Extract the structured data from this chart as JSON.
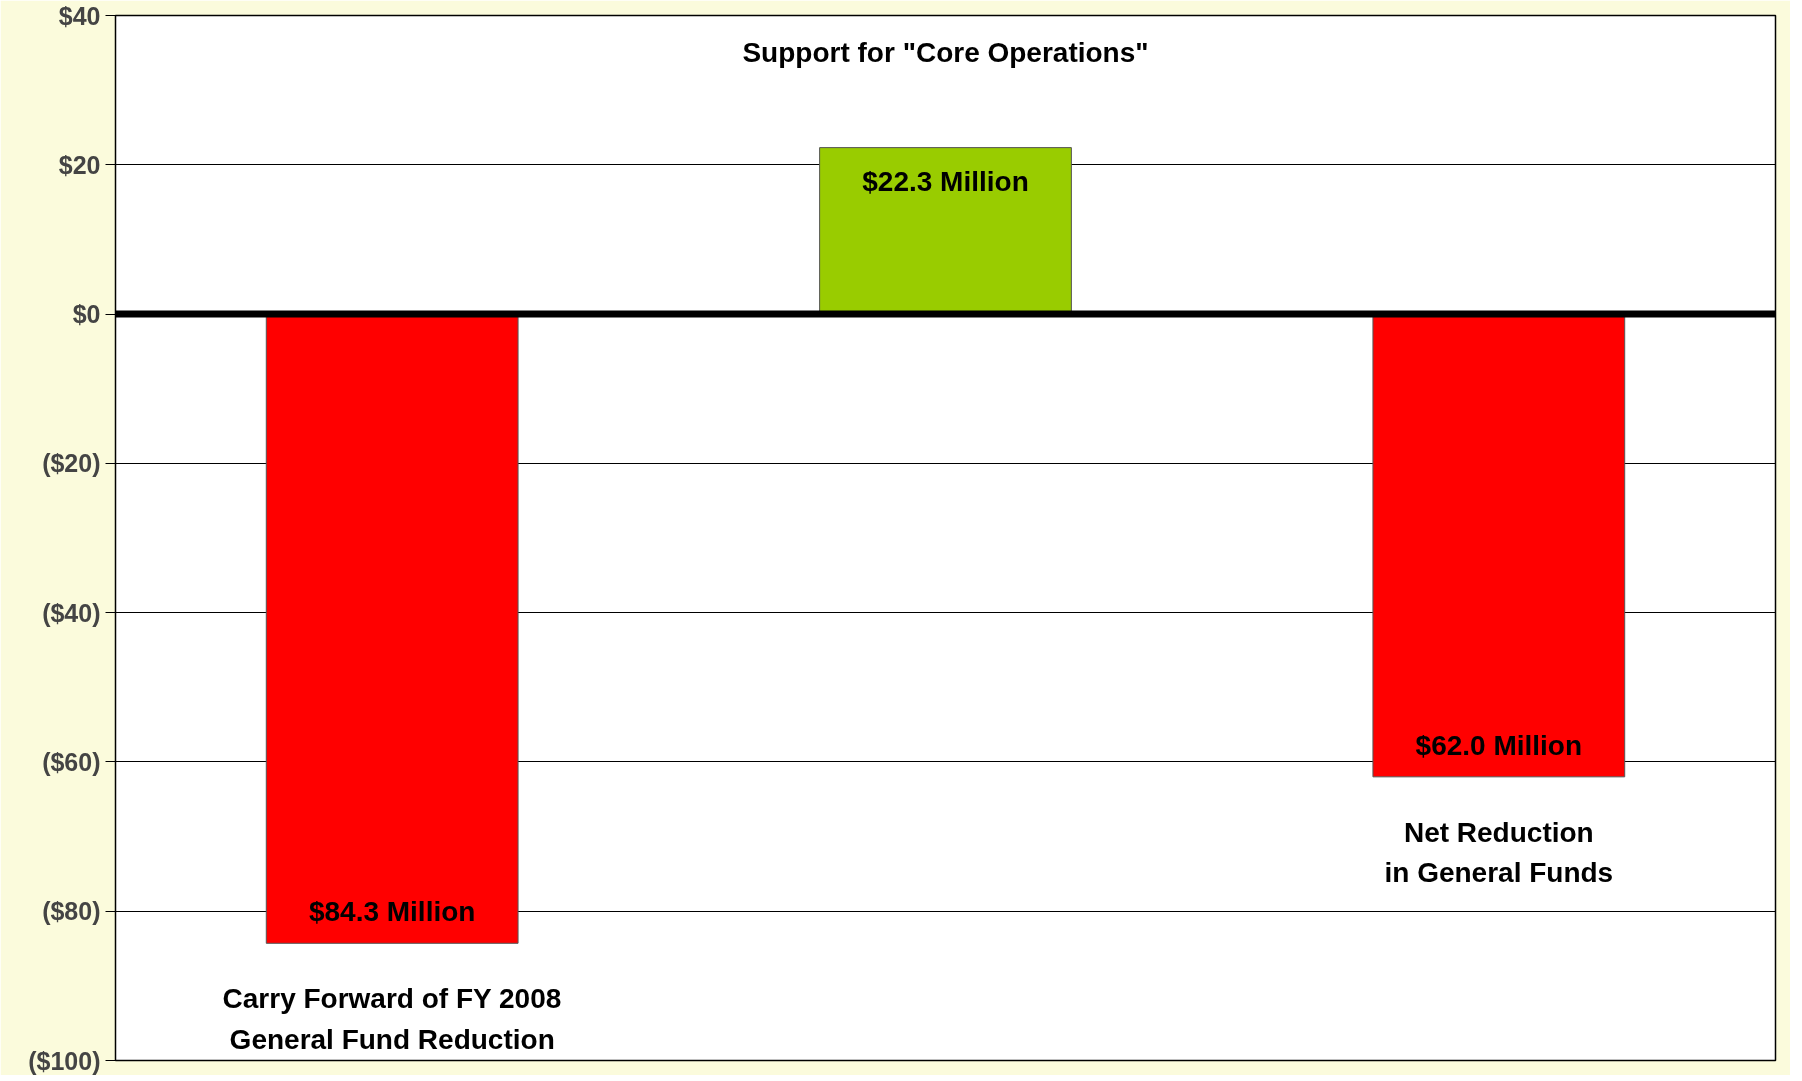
{
  "chart_data": {
    "type": "bar",
    "categories": [
      "Carry Forward of FY 2008\nGeneral Fund Reduction",
      "Support for \"Core Operations\"",
      "Net Reduction\nin General Funds"
    ],
    "values": [
      -84.3,
      22.3,
      -62.0
    ],
    "colors": [
      "#ff0000",
      "#99cc00",
      "#ff0000"
    ],
    "annotations": [
      "$84.3 Million",
      "$22.3 Million",
      "$62.0 Million"
    ],
    "ylim": [
      -100,
      40
    ],
    "yticks": [
      {
        "value": 40,
        "label": "$40"
      },
      {
        "value": 20,
        "label": "$20"
      },
      {
        "value": 0,
        "label": "$0"
      },
      {
        "value": -20,
        "label": "($20)"
      },
      {
        "value": -40,
        "label": "($40)"
      },
      {
        "value": -60,
        "label": "($60)"
      },
      {
        "value": -80,
        "label": "($80)"
      },
      {
        "value": -100,
        "label": "($100)"
      }
    ],
    "ref_lines": [
      {
        "axis": "y",
        "value": 0,
        "color": "#000000"
      }
    ],
    "grid": "y",
    "tick_labels": "y"
  }
}
